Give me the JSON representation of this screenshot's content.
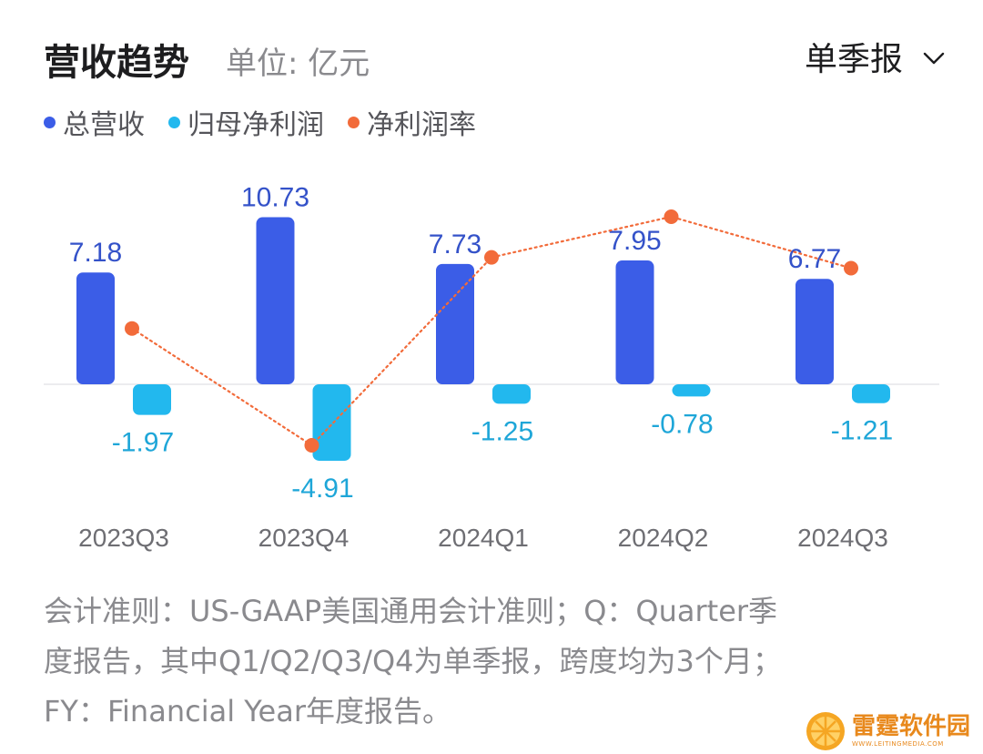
{
  "header": {
    "title": "营收趋势",
    "unit": "单位: 亿元",
    "period_selector": "单季报",
    "period_icon": "chevron-down-icon"
  },
  "legend": [
    {
      "label": "总营收",
      "color": "#3b5de7"
    },
    {
      "label": "归母净利润",
      "color": "#22b8ee"
    },
    {
      "label": "净利润率",
      "color": "#f26b3a"
    }
  ],
  "chart_data": {
    "type": "bar",
    "categories": [
      "2023Q3",
      "2023Q4",
      "2024Q1",
      "2024Q2",
      "2024Q3"
    ],
    "series": [
      {
        "name": "总营收",
        "type": "bar",
        "color": "#3b5de7",
        "values": [
          7.18,
          10.73,
          7.73,
          7.95,
          6.77
        ]
      },
      {
        "name": "归母净利润",
        "type": "bar",
        "color": "#22b8ee",
        "values": [
          -1.97,
          -4.91,
          -1.25,
          -0.78,
          -1.21
        ]
      },
      {
        "name": "净利润率",
        "type": "line",
        "color": "#f26b3a",
        "values": [
          -27.4,
          -45.8,
          -16.2,
          -9.8,
          -17.9
        ]
      }
    ],
    "ylim": [
      -6,
      12
    ],
    "grid": false,
    "legend_position": "top-left"
  },
  "footnote": [
    "会计准则：US-GAAP美国通用会计准则；Q：Quarter季",
    "度报告，其中Q1/Q2/Q3/Q4为单季报，跨度均为3个月；",
    "FY：Financial Year年度报告。"
  ],
  "watermark": {
    "name": "雷霆软件园",
    "url": "WWW.LEITINGMEDIA.COM"
  }
}
